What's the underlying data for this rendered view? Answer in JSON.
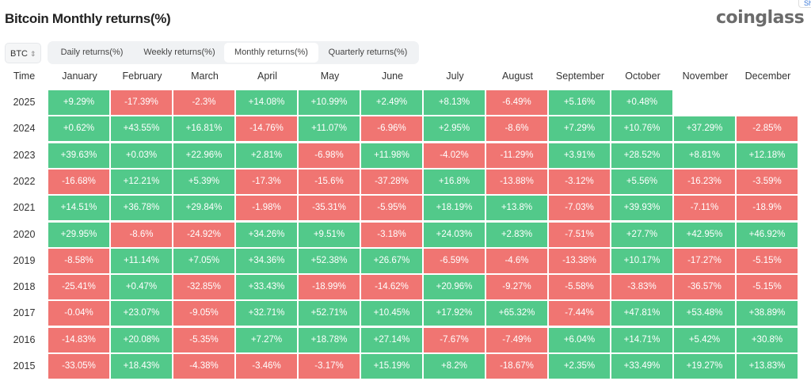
{
  "header": {
    "title": "Bitcoin Monthly returns(%)",
    "logo": "coinglass",
    "share": "Share"
  },
  "controls": {
    "asset": "BTC",
    "tabs": [
      {
        "label": "Daily returns(%)",
        "active": false
      },
      {
        "label": "Weekly returns(%)",
        "active": false
      },
      {
        "label": "Monthly returns(%)",
        "active": true
      },
      {
        "label": "Quarterly returns(%)",
        "active": false
      }
    ]
  },
  "colors": {
    "positive": "#52c98a",
    "negative": "#f07572"
  },
  "chart_data": {
    "type": "heatmap",
    "title": "Bitcoin Monthly returns(%)",
    "row_header": "Time",
    "columns": [
      "January",
      "February",
      "March",
      "April",
      "May",
      "June",
      "July",
      "August",
      "September",
      "October",
      "November",
      "December"
    ],
    "rows": [
      {
        "year": "2025",
        "values": [
          "+9.29%",
          "-17.39%",
          "-2.3%",
          "+14.08%",
          "+10.99%",
          "+2.49%",
          "+8.13%",
          "-6.49%",
          "+5.16%",
          "+0.48%",
          null,
          null
        ]
      },
      {
        "year": "2024",
        "values": [
          "+0.62%",
          "+43.55%",
          "+16.81%",
          "-14.76%",
          "+11.07%",
          "-6.96%",
          "+2.95%",
          "-8.6%",
          "+7.29%",
          "+10.76%",
          "+37.29%",
          "-2.85%"
        ]
      },
      {
        "year": "2023",
        "values": [
          "+39.63%",
          "+0.03%",
          "+22.96%",
          "+2.81%",
          "-6.98%",
          "+11.98%",
          "-4.02%",
          "-11.29%",
          "+3.91%",
          "+28.52%",
          "+8.81%",
          "+12.18%"
        ]
      },
      {
        "year": "2022",
        "values": [
          "-16.68%",
          "+12.21%",
          "+5.39%",
          "-17.3%",
          "-15.6%",
          "-37.28%",
          "+16.8%",
          "-13.88%",
          "-3.12%",
          "+5.56%",
          "-16.23%",
          "-3.59%"
        ]
      },
      {
        "year": "2021",
        "values": [
          "+14.51%",
          "+36.78%",
          "+29.84%",
          "-1.98%",
          "-35.31%",
          "-5.95%",
          "+18.19%",
          "+13.8%",
          "-7.03%",
          "+39.93%",
          "-7.11%",
          "-18.9%"
        ]
      },
      {
        "year": "2020",
        "values": [
          "+29.95%",
          "-8.6%",
          "-24.92%",
          "+34.26%",
          "+9.51%",
          "-3.18%",
          "+24.03%",
          "+2.83%",
          "-7.51%",
          "+27.7%",
          "+42.95%",
          "+46.92%"
        ]
      },
      {
        "year": "2019",
        "values": [
          "-8.58%",
          "+11.14%",
          "+7.05%",
          "+34.36%",
          "+52.38%",
          "+26.67%",
          "-6.59%",
          "-4.6%",
          "-13.38%",
          "+10.17%",
          "-17.27%",
          "-5.15%"
        ]
      },
      {
        "year": "2018",
        "values": [
          "-25.41%",
          "+0.47%",
          "-32.85%",
          "+33.43%",
          "-18.99%",
          "-14.62%",
          "+20.96%",
          "-9.27%",
          "-5.58%",
          "-3.83%",
          "-36.57%",
          "-5.15%"
        ]
      },
      {
        "year": "2017",
        "values": [
          "-0.04%",
          "+23.07%",
          "-9.05%",
          "+32.71%",
          "+52.71%",
          "+10.45%",
          "+17.92%",
          "+65.32%",
          "-7.44%",
          "+47.81%",
          "+53.48%",
          "+38.89%"
        ]
      },
      {
        "year": "2016",
        "values": [
          "-14.83%",
          "+20.08%",
          "-5.35%",
          "+7.27%",
          "+18.78%",
          "+27.14%",
          "-7.67%",
          "-7.49%",
          "+6.04%",
          "+14.71%",
          "+5.42%",
          "+30.8%"
        ]
      },
      {
        "year": "2015",
        "values": [
          "-33.05%",
          "+18.43%",
          "-4.38%",
          "-3.46%",
          "-3.17%",
          "+15.19%",
          "+8.2%",
          "-18.67%",
          "+2.35%",
          "+33.49%",
          "+19.27%",
          "+13.83%"
        ]
      }
    ]
  }
}
